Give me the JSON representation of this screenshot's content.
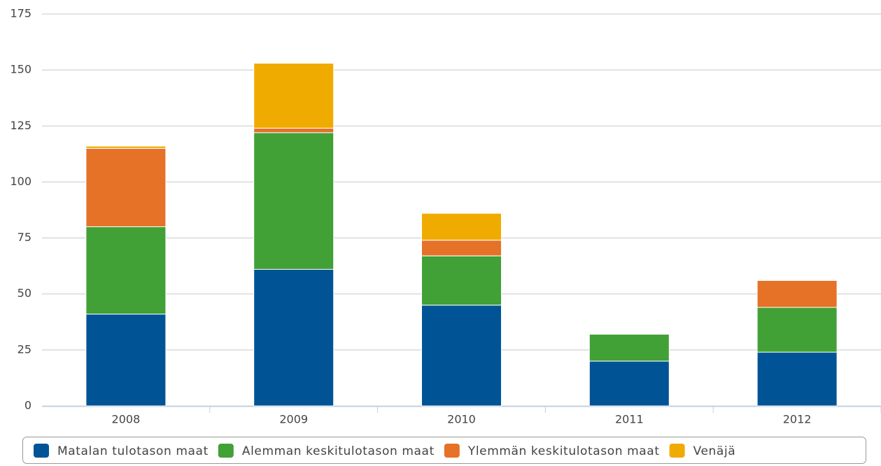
{
  "chart_data": {
    "type": "bar",
    "stacked": true,
    "categories": [
      "2008",
      "2009",
      "2010",
      "2011",
      "2012"
    ],
    "series": [
      {
        "name": "Matalan tulotason maat",
        "color": "#005496",
        "values": [
          41,
          61,
          45,
          20,
          24
        ]
      },
      {
        "name": "Alemman keskitulotason maat",
        "color": "#41a036",
        "values": [
          39,
          61,
          22,
          12,
          20
        ]
      },
      {
        "name": "Ylemmän keskitulotason maat",
        "color": "#e57227",
        "values": [
          35,
          2,
          7,
          null,
          12
        ]
      },
      {
        "name": "Venäjä",
        "color": "#f0ab00",
        "values": [
          1,
          29,
          12,
          null,
          null
        ]
      }
    ],
    "ylim": [
      0,
      175
    ],
    "yticks": [
      0,
      25,
      50,
      75,
      100,
      125,
      150,
      175
    ],
    "grid": true,
    "legend": "bottom"
  }
}
